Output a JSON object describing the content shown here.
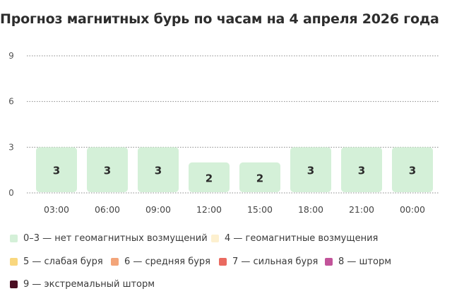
{
  "title": "Прогноз магнитных бурь по часам на 4 апреля 2026 года",
  "chart_data": {
    "type": "bar",
    "categories": [
      "03:00",
      "06:00",
      "09:00",
      "12:00",
      "15:00",
      "18:00",
      "21:00",
      "00:00"
    ],
    "values": [
      3,
      3,
      3,
      2,
      2,
      3,
      3,
      3
    ],
    "yticks": [
      0,
      3,
      6,
      9
    ],
    "ylim": [
      0,
      9
    ],
    "grid": true,
    "bar_color": "#d4f0d8",
    "data_labels": true,
    "legend_position": "bottom"
  },
  "legend": [
    {
      "label": "0–3 — нет геомагнитных возмущений",
      "color": "#d4f0d8"
    },
    {
      "label": "4 — геомагнитные возмущения",
      "color": "#fdf0cf"
    },
    {
      "label": "5 — слабая буря",
      "color": "#f9d77e"
    },
    {
      "label": "6 — средняя буря",
      "color": "#f3a57a"
    },
    {
      "label": "7 — сильная буря",
      "color": "#ea6a60"
    },
    {
      "label": "8 — шторм",
      "color": "#c2549a"
    },
    {
      "label": "9 — экстремальный шторм",
      "color": "#4a0e22"
    }
  ]
}
